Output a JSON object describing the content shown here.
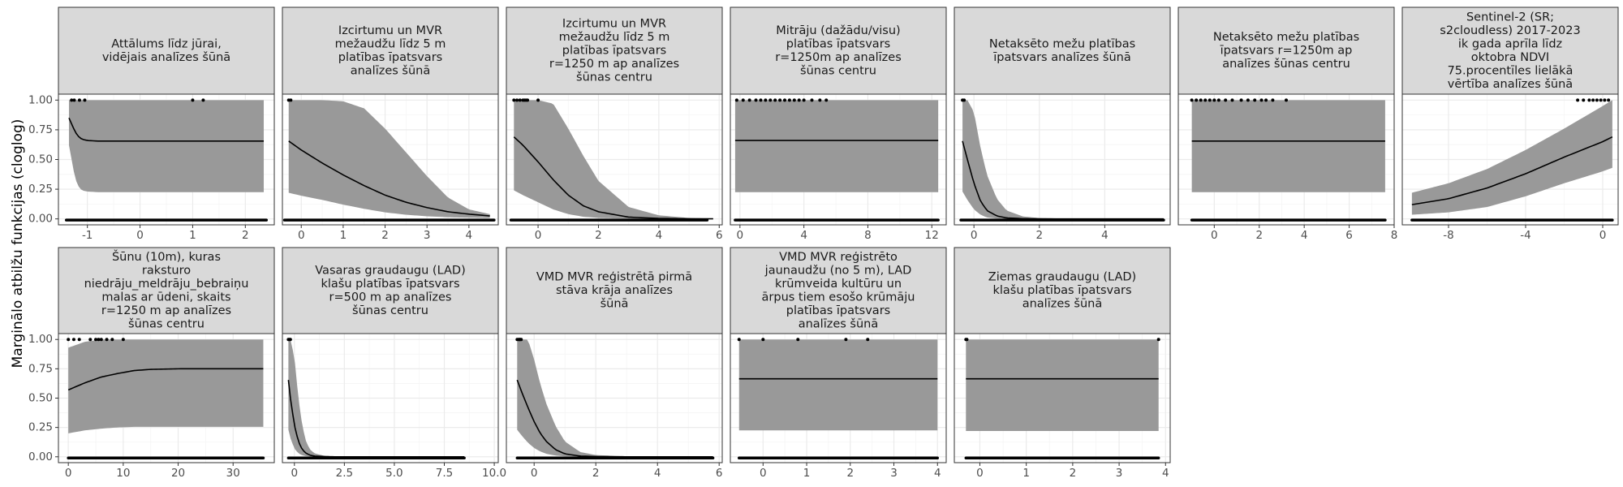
{
  "chart_data": {
    "type": "line",
    "ylabel": "Marginālo atbilžu funkcijas (cloglog)",
    "ylim": [
      -0.05,
      1.05
    ],
    "y_ticks": [
      0.0,
      0.25,
      0.5,
      0.75,
      1.0
    ],
    "y_tick_labels": [
      "0.00",
      "0.25",
      "0.50",
      "0.75",
      "1.00"
    ],
    "grid": true,
    "style": {
      "ribbon_color": "#999999",
      "line_color": "#000000",
      "point_color": "#000000",
      "strip_fill": "#d9d9d9",
      "border_color": "#333333",
      "grid_major_color": "#ebebeb"
    },
    "panels": [
      {
        "title": "Attālums līdz jūrai,\nvidējais analīzes šūnā",
        "xlim": [
          -1.55,
          2.55
        ],
        "x_ticks": [
          -1,
          0,
          1,
          2
        ],
        "x_tick_labels": [
          "-1",
          "0",
          "1",
          "2"
        ],
        "curve": {
          "x": [
            -1.35,
            -1.3,
            -1.25,
            -1.2,
            -1.15,
            -1.1,
            -1.0,
            -0.8,
            -0.5,
            0,
            1,
            2,
            2.35
          ],
          "y": [
            0.85,
            0.8,
            0.75,
            0.71,
            0.685,
            0.67,
            0.66,
            0.655,
            0.655,
            0.655,
            0.655,
            0.655,
            0.655
          ]
        },
        "ribbon_low": [
          0.62,
          0.5,
          0.38,
          0.3,
          0.26,
          0.24,
          0.23,
          0.225,
          0.225,
          0.225,
          0.225,
          0.225,
          0.225
        ],
        "ribbon_high": [
          1,
          1,
          1,
          1,
          1,
          1,
          1,
          1,
          1,
          1,
          1,
          1,
          1
        ],
        "presence_x": [
          -1.3,
          -1.25,
          -1.15,
          -1.05,
          1.0,
          1.2
        ],
        "absence_range": [
          -1.4,
          2.4
        ]
      },
      {
        "title": "Izcirtumu un MVR\nmežaudžu līdz 5 m\nplatības īpatsvars\nanalīzes šūnā",
        "xlim": [
          -0.45,
          4.7
        ],
        "x_ticks": [
          0,
          1,
          2,
          3,
          4
        ],
        "x_tick_labels": [
          "0",
          "1",
          "2",
          "3",
          "4"
        ],
        "curve": {
          "x": [
            -0.3,
            0,
            0.5,
            1,
            1.5,
            2,
            2.5,
            3,
            3.5,
            4,
            4.5
          ],
          "y": [
            0.655,
            0.58,
            0.47,
            0.37,
            0.28,
            0.2,
            0.14,
            0.095,
            0.06,
            0.04,
            0.025
          ]
        },
        "ribbon_low": [
          0.22,
          0.195,
          0.16,
          0.12,
          0.085,
          0.055,
          0.035,
          0.022,
          0.014,
          0.01,
          0.008
        ],
        "ribbon_high": [
          1,
          1,
          1,
          0.99,
          0.93,
          0.76,
          0.56,
          0.36,
          0.18,
          0.08,
          0.04
        ],
        "presence_x": [
          -0.3,
          -0.25
        ],
        "absence_range": [
          -0.4,
          4.6
        ]
      },
      {
        "title": "Izcirtumu un MVR\nmežaudžu līdz 5 m\nplatības īpatsvars\nr=1250 m ap analīzes\nšūnas centru",
        "xlim": [
          -1.05,
          6.1
        ],
        "x_ticks": [
          0,
          2,
          4,
          6
        ],
        "x_tick_labels": [
          "0",
          "2",
          "4",
          "6"
        ],
        "curve": {
          "x": [
            -0.8,
            -0.5,
            0,
            0.5,
            1,
            1.5,
            2,
            3,
            4,
            5,
            5.8
          ],
          "y": [
            0.69,
            0.62,
            0.48,
            0.33,
            0.2,
            0.11,
            0.06,
            0.015,
            0.004,
            0.001,
            0.0005
          ]
        },
        "ribbon_low": [
          0.24,
          0.2,
          0.14,
          0.08,
          0.04,
          0.018,
          0.008,
          0.002,
          0,
          0,
          0
        ],
        "ribbon_high": [
          1,
          1,
          1,
          0.97,
          0.76,
          0.53,
          0.32,
          0.1,
          0.03,
          0.008,
          0.003
        ],
        "presence_x": [
          -0.8,
          -0.7,
          -0.6,
          -0.5,
          -0.45,
          -0.4,
          -0.35,
          0.0
        ],
        "absence_range": [
          -0.9,
          5.6
        ]
      },
      {
        "title": "Mitrāju (dažādu/visu)\nplatības īpatsvars\nr=1250m ap analīzes\nšūnas centru",
        "xlim": [
          -0.6,
          12.9
        ],
        "x_ticks": [
          0,
          4,
          8,
          12
        ],
        "x_tick_labels": [
          "0",
          "4",
          "8",
          "12"
        ],
        "curve": {
          "x": [
            -0.3,
            12.4
          ],
          "y": [
            0.66,
            0.66
          ]
        },
        "ribbon_low": [
          0.225,
          0.225
        ],
        "ribbon_high": [
          1,
          1
        ],
        "presence_x": [
          -0.2,
          0.2,
          0.6,
          1.0,
          1.3,
          1.6,
          1.9,
          2.2,
          2.5,
          2.8,
          3.1,
          3.4,
          3.7,
          4.0,
          4.5,
          5.0,
          5.4
        ],
        "absence_range": [
          -0.3,
          12.4
        ]
      },
      {
        "title": "Netaksēto mežu platības\nīpatsvars analīzes šūnā",
        "xlim": [
          -0.6,
          6.0
        ],
        "x_ticks": [
          0,
          2,
          4
        ],
        "x_tick_labels": [
          "0",
          "2",
          "4"
        ],
        "curve": {
          "x": [
            -0.35,
            -0.2,
            0,
            0.2,
            0.4,
            0.7,
            1.0,
            1.5,
            2,
            3,
            4,
            5.8
          ],
          "y": [
            0.655,
            0.5,
            0.3,
            0.15,
            0.07,
            0.025,
            0.008,
            0.002,
            0,
            0,
            0,
            0
          ]
        },
        "ribbon_low": [
          0.23,
          0.16,
          0.08,
          0.035,
          0.012,
          0.003,
          0.001,
          0,
          0,
          0,
          0,
          0
        ],
        "ribbon_high": [
          1,
          1,
          0.9,
          0.6,
          0.37,
          0.17,
          0.07,
          0.02,
          0.008,
          0.002,
          0.001,
          0.001
        ],
        "presence_x": [
          -0.35,
          -0.3
        ],
        "absence_range": [
          -0.4,
          5.8
        ]
      },
      {
        "title": "Netaksēto mežu platības\nīpatsvars r=1250m ap\nanalīzes šūnas centru",
        "xlim": [
          -1.6,
          8.0
        ],
        "x_ticks": [
          0,
          2,
          4,
          6,
          8
        ],
        "x_tick_labels": [
          "0",
          "2",
          "4",
          "6",
          "8"
        ],
        "curve": {
          "x": [
            -1.0,
            7.6
          ],
          "y": [
            0.655,
            0.655
          ]
        },
        "ribbon_low": [
          0.225,
          0.225
        ],
        "ribbon_high": [
          1,
          1
        ],
        "presence_x": [
          -1.0,
          -0.8,
          -0.6,
          -0.4,
          -0.2,
          0,
          0.2,
          0.5,
          0.8,
          1.2,
          1.5,
          1.8,
          2.1,
          2.3,
          2.6,
          3.2
        ],
        "absence_range": [
          -1.0,
          7.6
        ]
      },
      {
        "title": "Sentinel-2 (SR;\ns2cloudless) 2017-2023\nik gada aprīla līdz\noktobra NDVI\n75.procentīles lielākā\nvērtība analīzes šūnā",
        "xlim": [
          -10.4,
          0.8
        ],
        "x_ticks": [
          -8,
          -4,
          0
        ],
        "x_tick_labels": [
          "-8",
          "-4",
          "0"
        ],
        "curve": {
          "x": [
            -9.9,
            -8,
            -6,
            -4,
            -2,
            0,
            0.5
          ],
          "y": [
            0.12,
            0.17,
            0.26,
            0.38,
            0.52,
            0.65,
            0.69
          ]
        },
        "ribbon_low": [
          0.035,
          0.055,
          0.1,
          0.19,
          0.3,
          0.4,
          0.43
        ],
        "ribbon_high": [
          0.22,
          0.3,
          0.42,
          0.58,
          0.76,
          0.95,
          1
        ],
        "presence_x": [
          -1.3,
          -1.0,
          -0.7,
          -0.5,
          -0.3,
          -0.1,
          0.1,
          0.3
        ],
        "absence_range": [
          -9.9,
          0.5
        ]
      },
      {
        "title": "Šūnu (10m), kuras\nraksturo\nniedrāju_meldrāju_bebraiņu\nmalas ar ūdeni, skaits\nr=1250 m ap analīzes\nšūnas centru",
        "xlim": [
          -1.8,
          37.5
        ],
        "x_ticks": [
          0,
          10,
          20,
          30
        ],
        "x_tick_labels": [
          "0",
          "10",
          "20",
          "30"
        ],
        "curve": {
          "x": [
            0,
            3,
            6,
            9,
            12,
            15,
            20,
            25,
            30,
            35.5
          ],
          "y": [
            0.57,
            0.63,
            0.68,
            0.71,
            0.735,
            0.745,
            0.75,
            0.75,
            0.75,
            0.75
          ]
        },
        "ribbon_low": [
          0.2,
          0.225,
          0.24,
          0.25,
          0.255,
          0.255,
          0.255,
          0.255,
          0.255,
          0.255
        ],
        "ribbon_high": [
          0.93,
          0.98,
          1,
          1,
          1,
          1,
          1,
          1,
          1,
          1
        ],
        "presence_x": [
          0,
          1,
          2,
          4,
          5,
          5.5,
          6,
          7,
          8,
          10
        ],
        "absence_range": [
          0,
          35.5
        ]
      },
      {
        "title": "Vasaras graudaugu (LAD)\nklašu platības īpatsvars\nr=500 m ap analīzes\nšūnas centru",
        "xlim": [
          -0.6,
          10.2
        ],
        "x_ticks": [
          0,
          2.5,
          5,
          7.5,
          10
        ],
        "x_tick_labels": [
          "0",
          "2.5",
          "5.0",
          "7.5",
          "10.0"
        ],
        "curve": {
          "x": [
            -0.3,
            -0.2,
            0,
            0.2,
            0.4,
            0.6,
            0.8,
            1.0,
            1.5,
            2,
            3,
            5,
            8.5
          ],
          "y": [
            0.655,
            0.5,
            0.27,
            0.13,
            0.06,
            0.028,
            0.013,
            0.006,
            0.002,
            0,
            0,
            0,
            0
          ]
        },
        "ribbon_low": [
          0.23,
          0.16,
          0.07,
          0.03,
          0.012,
          0.005,
          0.002,
          0.001,
          0,
          0,
          0,
          0,
          0
        ],
        "ribbon_high": [
          1,
          1,
          0.85,
          0.5,
          0.26,
          0.12,
          0.06,
          0.03,
          0.008,
          0.003,
          0.001,
          0,
          0
        ],
        "presence_x": [
          -0.3,
          -0.25,
          -0.2
        ],
        "absence_range": [
          -0.3,
          8.5
        ]
      },
      {
        "title": "VMD MVR reģistrētā pirmā\nstāva krāja analīzes\nšūnā",
        "xlim": [
          -0.9,
          6.1
        ],
        "x_ticks": [
          0,
          2,
          4,
          6
        ],
        "x_tick_labels": [
          "0",
          "2",
          "4",
          "6"
        ],
        "curve": {
          "x": [
            -0.55,
            -0.4,
            -0.2,
            0,
            0.2,
            0.4,
            0.7,
            1.0,
            1.5,
            2,
            3,
            5.8
          ],
          "y": [
            0.655,
            0.55,
            0.42,
            0.3,
            0.2,
            0.13,
            0.06,
            0.025,
            0.006,
            0.002,
            0,
            0
          ]
        },
        "ribbon_low": [
          0.23,
          0.18,
          0.12,
          0.075,
          0.045,
          0.025,
          0.01,
          0.004,
          0.001,
          0,
          0,
          0
        ],
        "ribbon_high": [
          1,
          1,
          1,
          0.83,
          0.62,
          0.45,
          0.26,
          0.13,
          0.04,
          0.015,
          0.003,
          0.001
        ],
        "presence_x": [
          -0.55,
          -0.5,
          -0.48,
          -0.45,
          -0.42
        ],
        "absence_range": [
          -0.55,
          5.8
        ]
      },
      {
        "title": "VMD MVR reģistrēto\njaunaudžu (no 5 m), LAD\nkrūmveida kultūru un\nārpus tiem esošo krūmāju\nplatības īpatsvars\nanalīzes šūnā",
        "xlim": [
          -0.75,
          4.2
        ],
        "x_ticks": [
          0,
          1,
          2,
          3,
          4
        ],
        "x_tick_labels": [
          "0",
          "1",
          "2",
          "3",
          "4"
        ],
        "curve": {
          "x": [
            -0.55,
            4.0
          ],
          "y": [
            0.665,
            0.665
          ]
        },
        "ribbon_low": [
          0.225,
          0.225
        ],
        "ribbon_high": [
          1,
          1
        ],
        "presence_x": [
          -0.55,
          0,
          0.8,
          1.9,
          2.4
        ],
        "absence_range": [
          -0.55,
          4.0
        ]
      },
      {
        "title": "Ziemas graudaugu (LAD)\nklašu platības īpatsvars\nanalīzes šūnā",
        "xlim": [
          -0.55,
          4.1
        ],
        "x_ticks": [
          0,
          1,
          2,
          3,
          4
        ],
        "x_tick_labels": [
          "0",
          "1",
          "2",
          "3",
          "4"
        ],
        "curve": {
          "x": [
            -0.3,
            3.85
          ],
          "y": [
            0.665,
            0.665
          ]
        },
        "ribbon_low": [
          0.22,
          0.22
        ],
        "ribbon_high": [
          1,
          1
        ],
        "presence_x": [
          -0.3,
          -0.28,
          3.85
        ],
        "absence_range": [
          -0.3,
          3.85
        ]
      }
    ]
  }
}
